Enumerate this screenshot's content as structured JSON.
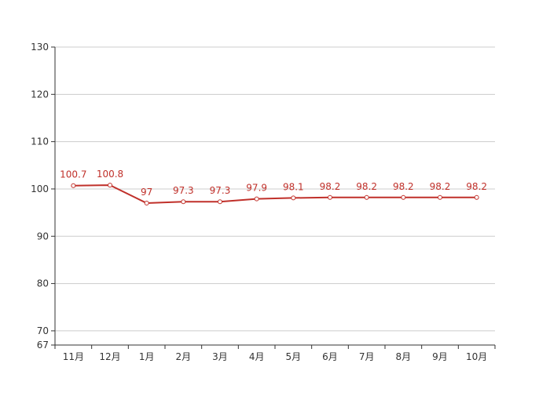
{
  "chart_data": {
    "type": "line",
    "categories": [
      "11月",
      "12月",
      "1月",
      "2月",
      "3月",
      "4月",
      "5月",
      "6月",
      "7月",
      "8月",
      "9月",
      "10月"
    ],
    "series": [
      {
        "values": [
          100.7,
          100.8,
          97,
          97.3,
          97.3,
          97.9,
          98.1,
          98.2,
          98.2,
          98.2,
          98.2,
          98.2
        ]
      }
    ],
    "data_labels": [
      "100.7",
      "100.8",
      "97",
      "97.3",
      "97.3",
      "97.9",
      "98.1",
      "98.2",
      "98.2",
      "98.2",
      "98.2",
      "98.2"
    ],
    "y_ticks": [
      67,
      70,
      80,
      90,
      100,
      110,
      120,
      130
    ],
    "ylim": [
      67,
      130
    ],
    "grid": true,
    "colors": {
      "line": "#c0302a",
      "grid": "#cccccc",
      "axis": "#333333"
    }
  }
}
